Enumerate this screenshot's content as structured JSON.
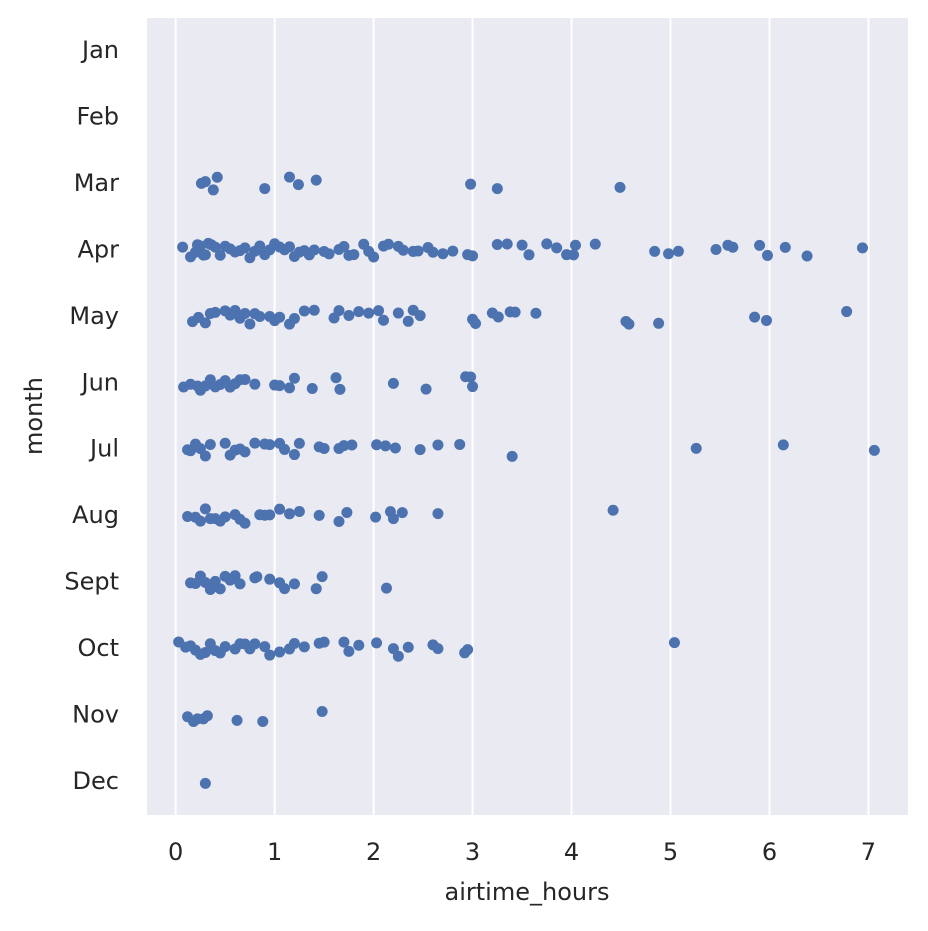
{
  "chart_data": {
    "type": "strip",
    "xlabel": "airtime_hours",
    "ylabel": "month",
    "categories": [
      "Jan",
      "Feb",
      "Mar",
      "Apr",
      "May",
      "Jun",
      "Jul",
      "Aug",
      "Sept",
      "Oct",
      "Nov",
      "Dec"
    ],
    "values": [
      [],
      [],
      [
        0.26,
        0.3,
        0.38,
        0.42,
        0.9,
        1.15,
        1.24,
        1.42,
        2.98,
        3.25,
        4.49
      ],
      [
        0.07,
        0.15,
        0.2,
        0.22,
        0.25,
        0.28,
        0.3,
        0.33,
        0.36,
        0.4,
        0.45,
        0.5,
        0.55,
        0.6,
        0.65,
        0.7,
        0.75,
        0.8,
        0.85,
        0.9,
        0.95,
        1.0,
        1.05,
        1.1,
        1.15,
        1.2,
        1.25,
        1.3,
        1.35,
        1.4,
        1.5,
        1.55,
        1.65,
        1.7,
        1.75,
        1.8,
        1.9,
        1.95,
        2.0,
        2.1,
        2.15,
        2.25,
        2.3,
        2.4,
        2.45,
        2.55,
        2.6,
        2.7,
        2.8,
        2.95,
        3.0,
        3.25,
        3.35,
        3.5,
        3.57,
        3.75,
        3.85,
        3.95,
        4.02,
        4.04,
        4.24,
        4.84,
        4.98,
        5.08,
        5.46,
        5.58,
        5.63,
        5.9,
        5.98,
        6.16,
        6.38,
        6.94
      ],
      [
        0.17,
        0.23,
        0.3,
        0.35,
        0.4,
        0.5,
        0.55,
        0.6,
        0.65,
        0.7,
        0.75,
        0.8,
        0.85,
        0.95,
        1.0,
        1.05,
        1.15,
        1.2,
        1.3,
        1.4,
        1.6,
        1.65,
        1.75,
        1.85,
        1.95,
        2.05,
        2.1,
        2.25,
        2.35,
        2.4,
        2.47,
        3.0,
        3.03,
        3.2,
        3.26,
        3.38,
        3.43,
        3.64,
        4.55,
        4.58,
        4.88,
        5.85,
        5.97,
        6.78
      ],
      [
        0.08,
        0.15,
        0.22,
        0.25,
        0.3,
        0.35,
        0.4,
        0.45,
        0.5,
        0.55,
        0.6,
        0.65,
        0.7,
        0.8,
        1.0,
        1.05,
        1.15,
        1.2,
        1.38,
        1.62,
        1.66,
        2.2,
        2.53,
        2.93,
        2.98,
        3.0
      ],
      [
        0.12,
        0.15,
        0.2,
        0.25,
        0.3,
        0.35,
        0.5,
        0.55,
        0.6,
        0.65,
        0.7,
        0.8,
        0.9,
        0.95,
        1.05,
        1.1,
        1.2,
        1.25,
        1.45,
        1.5,
        1.65,
        1.7,
        1.78,
        2.03,
        2.12,
        2.22,
        2.47,
        2.65,
        2.87,
        3.4,
        5.26,
        6.14,
        7.06
      ],
      [
        0.12,
        0.2,
        0.25,
        0.3,
        0.35,
        0.4,
        0.45,
        0.5,
        0.6,
        0.65,
        0.7,
        0.85,
        0.9,
        0.95,
        1.05,
        1.15,
        1.25,
        1.45,
        1.65,
        1.73,
        2.02,
        2.17,
        2.2,
        2.29,
        2.65,
        4.42
      ],
      [
        0.15,
        0.2,
        0.25,
        0.3,
        0.35,
        0.4,
        0.45,
        0.5,
        0.55,
        0.6,
        0.65,
        0.8,
        0.82,
        0.95,
        1.05,
        1.1,
        1.2,
        1.42,
        1.48,
        2.13
      ],
      [
        0.03,
        0.1,
        0.15,
        0.2,
        0.25,
        0.3,
        0.35,
        0.4,
        0.45,
        0.5,
        0.6,
        0.65,
        0.7,
        0.75,
        0.8,
        0.9,
        0.95,
        1.05,
        1.15,
        1.2,
        1.3,
        1.45,
        1.5,
        1.7,
        1.75,
        1.85,
        2.03,
        2.2,
        2.25,
        2.35,
        2.6,
        2.65,
        2.92,
        2.95,
        5.04
      ],
      [
        0.12,
        0.18,
        0.22,
        0.28,
        0.32,
        0.62,
        0.88,
        1.48
      ],
      [
        0.3
      ]
    ],
    "color": "#4c72b0",
    "xlim": [
      -0.29,
      7.4
    ],
    "xticks": [
      0,
      1,
      2,
      3,
      4,
      5,
      6,
      7
    ],
    "grid": true
  }
}
